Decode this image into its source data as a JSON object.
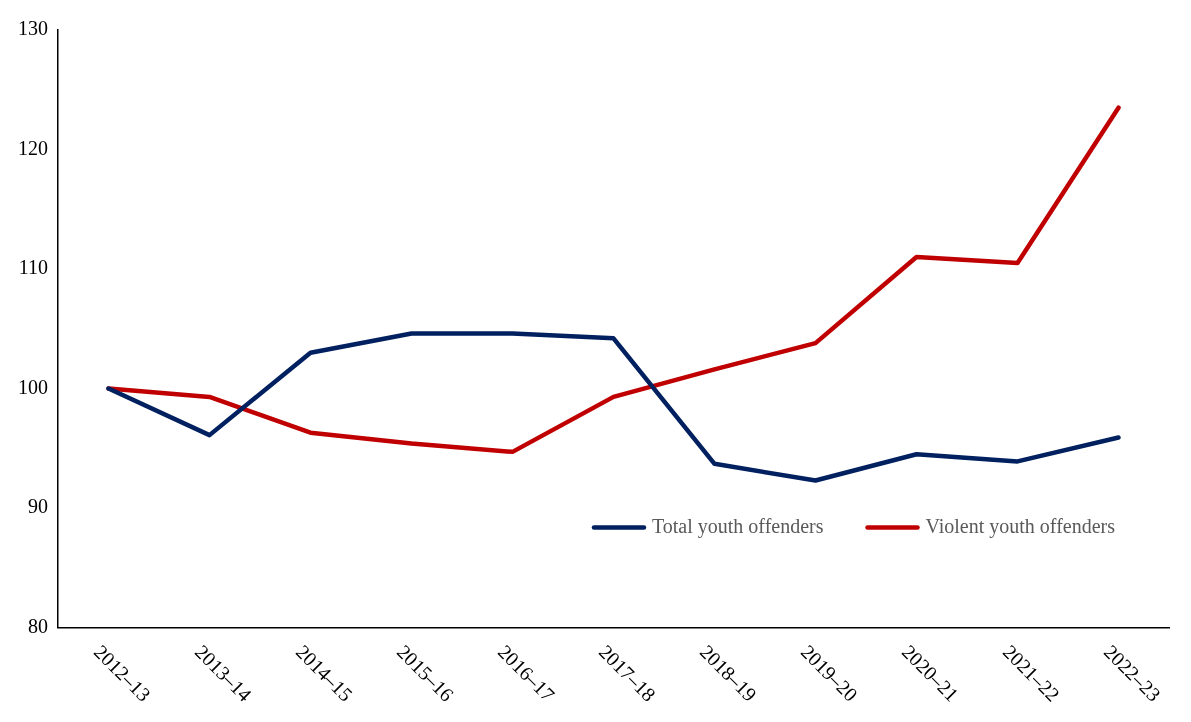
{
  "chart_data": {
    "type": "line",
    "categories": [
      "2012–13",
      "2013–14",
      "2014–15",
      "2015–16",
      "2016–17",
      "2017–18",
      "2018–19",
      "2019–20",
      "2020–21",
      "2021–22",
      "2022–23"
    ],
    "series": [
      {
        "name": "Total youth offenders",
        "color": "#002060",
        "values": [
          100,
          96.1,
          103.0,
          104.6,
          104.6,
          104.2,
          93.7,
          92.3,
          94.5,
          93.9,
          95.9
        ]
      },
      {
        "name": "Violent youth offenders",
        "color": "#c00000",
        "values": [
          100,
          99.3,
          96.3,
          95.4,
          94.7,
          99.3,
          101.6,
          103.8,
          111.0,
          110.5,
          123.5
        ]
      }
    ],
    "ylim": [
      80,
      130
    ],
    "yticks": [
      80,
      90,
      100,
      110,
      120,
      130
    ],
    "grid": false,
    "legend": "bottom right",
    "marker": "none",
    "line_style": "solid"
  }
}
